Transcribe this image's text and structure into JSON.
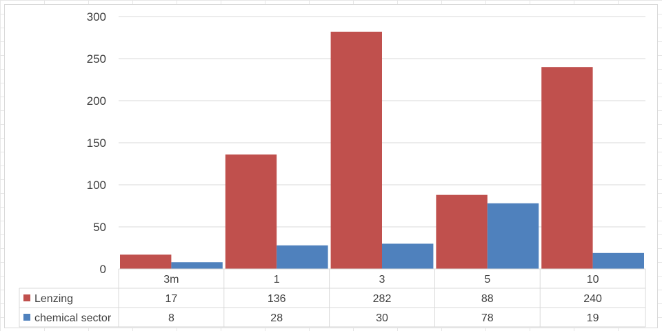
{
  "chart_data": {
    "type": "bar",
    "categories": [
      "3m",
      "1",
      "3",
      "5",
      "10"
    ],
    "series": [
      {
        "name": "Lenzing",
        "values": [
          17,
          136,
          282,
          88,
          240
        ],
        "color": "#c0504d"
      },
      {
        "name": "chemical sector",
        "values": [
          8,
          28,
          30,
          78,
          19
        ],
        "color": "#4f81bd"
      }
    ],
    "yticks": [
      "0",
      "50",
      "100",
      "150",
      "200",
      "250",
      "300"
    ],
    "ylim": [
      0,
      300
    ],
    "title": "",
    "xlabel": "",
    "ylabel": "",
    "grid": true,
    "legend": "data-table-left"
  }
}
